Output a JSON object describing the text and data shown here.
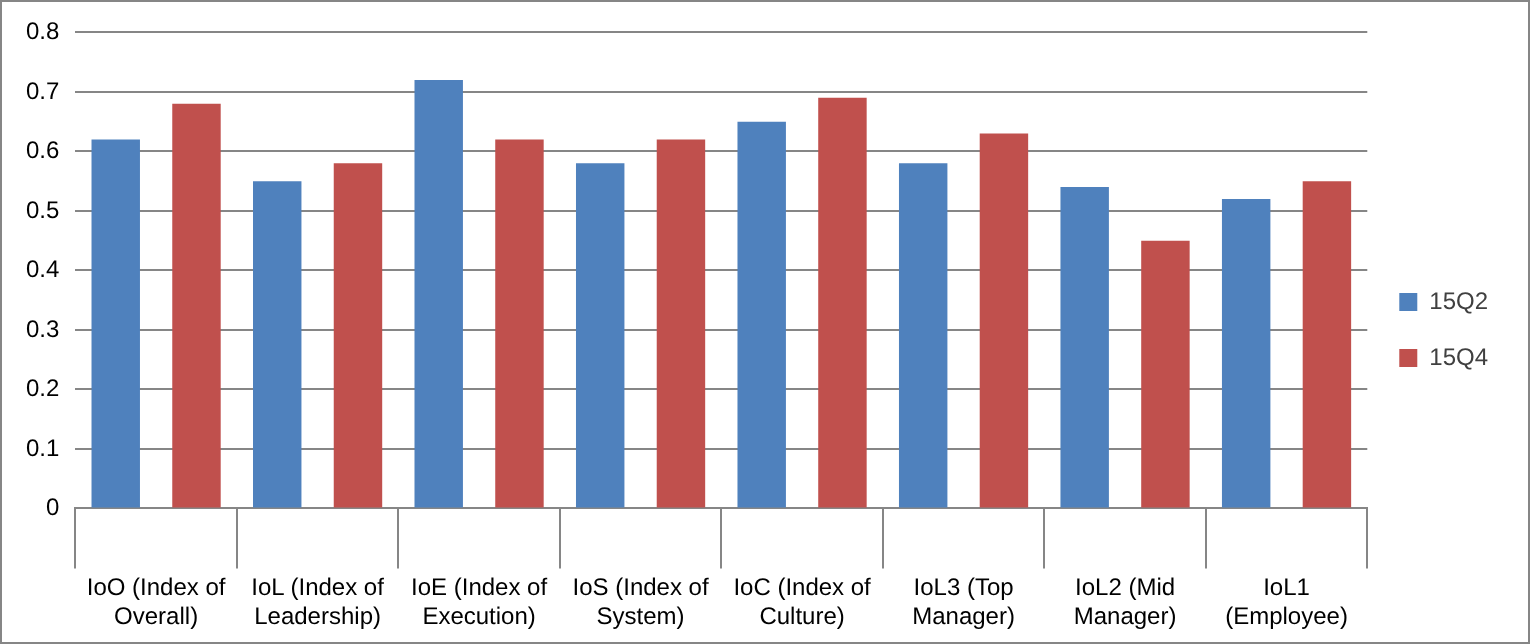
{
  "chart_data": {
    "type": "bar",
    "categories": [
      "IoO (Index of Overall)",
      "IoL (Index of Leadership)",
      "IoE (Index of Execution)",
      "IoS (Index of System)",
      "IoC (Index of Culture)",
      "IoL3 (Top Manager)",
      "IoL2 (Mid Manager)",
      "IoL1 (Employee)"
    ],
    "series": [
      {
        "name": "15Q2",
        "color": "#4f81bd",
        "values": [
          0.62,
          0.55,
          0.72,
          0.58,
          0.65,
          0.58,
          0.54,
          0.52
        ]
      },
      {
        "name": "15Q4",
        "color": "#c0504d",
        "values": [
          0.68,
          0.58,
          0.62,
          0.62,
          0.69,
          0.63,
          0.45,
          0.55
        ]
      }
    ],
    "ylim": [
      0,
      0.8
    ],
    "yticks": [
      {
        "value": 0,
        "label": "0"
      },
      0.1,
      0.2,
      0.3,
      0.4,
      0.5,
      0.6,
      0.7,
      0.8
    ],
    "grid": "y",
    "legend": "right"
  }
}
